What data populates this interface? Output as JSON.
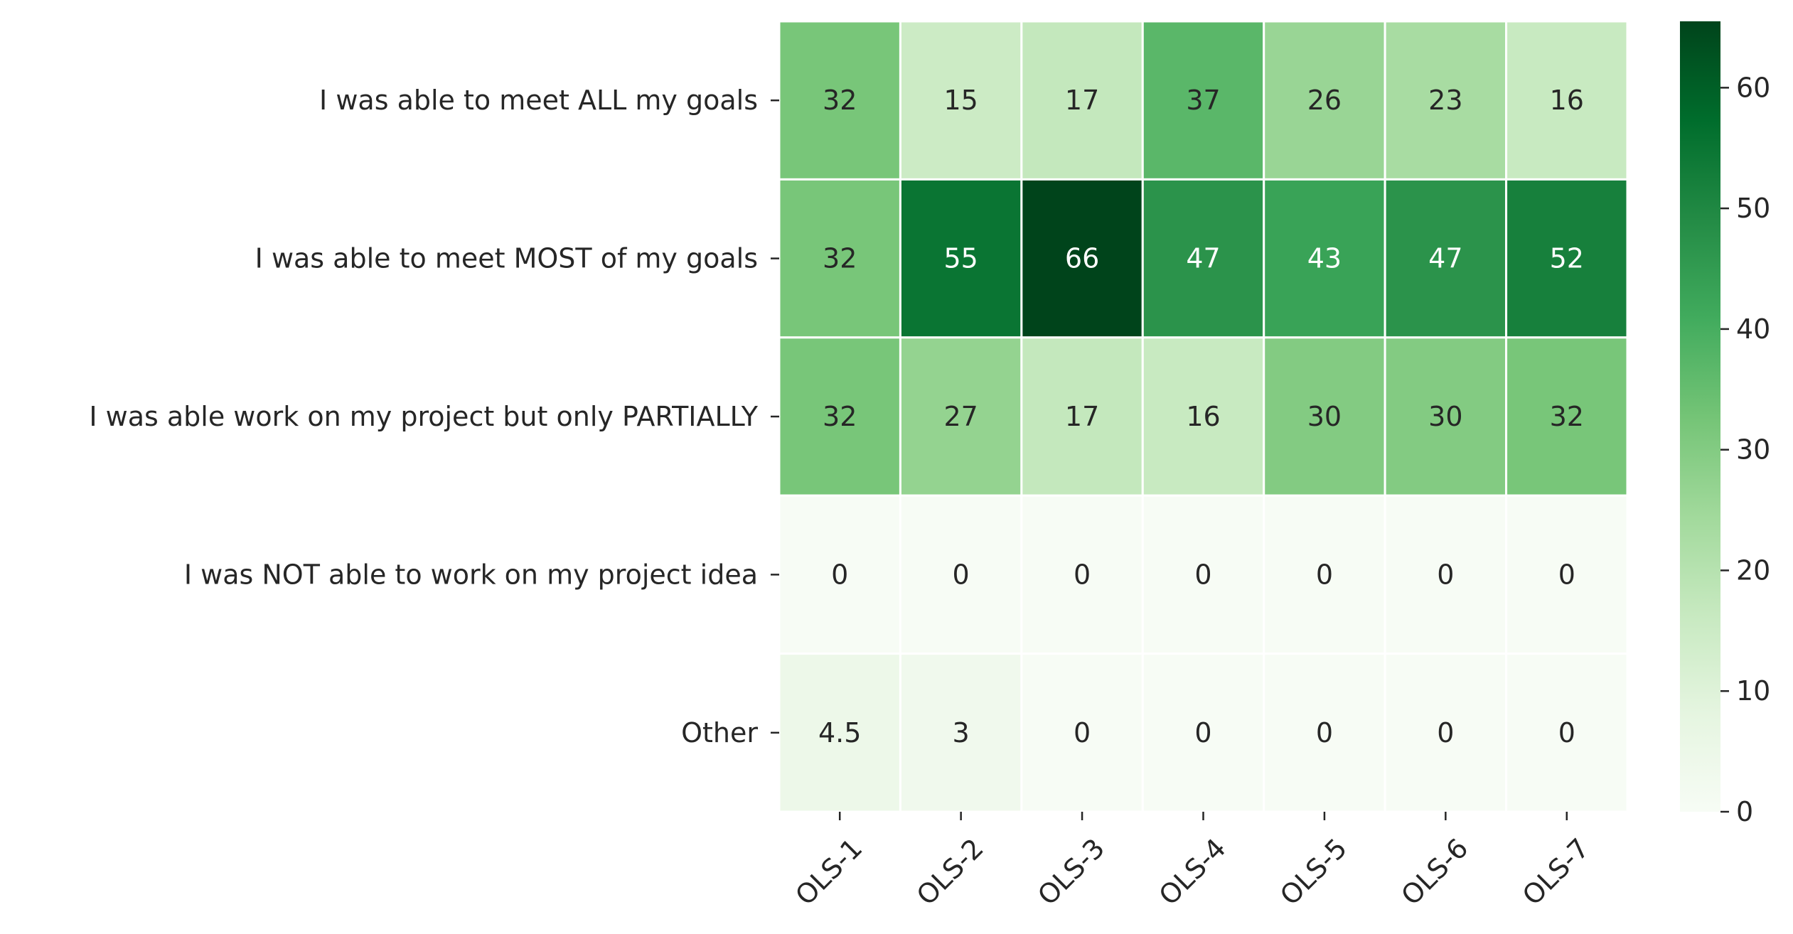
{
  "chart_data": {
    "type": "heatmap",
    "title": "",
    "xlabel": "",
    "ylabel": "",
    "colormap": "Greens",
    "colors": [
      "#f7fcf5",
      "#e5f5e0",
      "#c7e9c0",
      "#a1d99b",
      "#74c476",
      "#41ab5d",
      "#238b45",
      "#006d2c",
      "#00441b"
    ],
    "grid_line_color": "#ffffff",
    "x_categories": [
      "OLS-1",
      "OLS-2",
      "OLS-3",
      "OLS-4",
      "OLS-5",
      "OLS-6",
      "OLS-7"
    ],
    "y_categories": [
      "I was able to meet ALL my goals",
      "I was able to meet MOST of my goals",
      "I was able work on my project but only PARTIALLY",
      "I was NOT able to work on my project idea",
      "Other"
    ],
    "values": [
      [
        32,
        15,
        17,
        37,
        26,
        23,
        16
      ],
      [
        32,
        55,
        66,
        47,
        43,
        47,
        52
      ],
      [
        32,
        27,
        17,
        16,
        30,
        30,
        32
      ],
      [
        0,
        0,
        0,
        0,
        0,
        0,
        0
      ],
      [
        4.5,
        3,
        0,
        0,
        0,
        0,
        0
      ]
    ],
    "labels": [
      [
        "32",
        "15",
        "17",
        "37",
        "26",
        "23",
        "16"
      ],
      [
        "32",
        "55",
        "66",
        "47",
        "43",
        "47",
        "52"
      ],
      [
        "32",
        "27",
        "17",
        "16",
        "30",
        "30",
        "32"
      ],
      [
        "0",
        "0",
        "0",
        "0",
        "0",
        "0",
        "0"
      ],
      [
        "4.5",
        "3",
        "0",
        "0",
        "0",
        "0",
        "0"
      ]
    ],
    "vmin": 0,
    "vmax": 65.5,
    "colorbar": {
      "ticks": [
        0,
        10,
        20,
        30,
        40,
        50,
        60
      ],
      "tick_labels": [
        "0",
        "10",
        "20",
        "30",
        "40",
        "50",
        "60"
      ],
      "position": "right"
    }
  }
}
